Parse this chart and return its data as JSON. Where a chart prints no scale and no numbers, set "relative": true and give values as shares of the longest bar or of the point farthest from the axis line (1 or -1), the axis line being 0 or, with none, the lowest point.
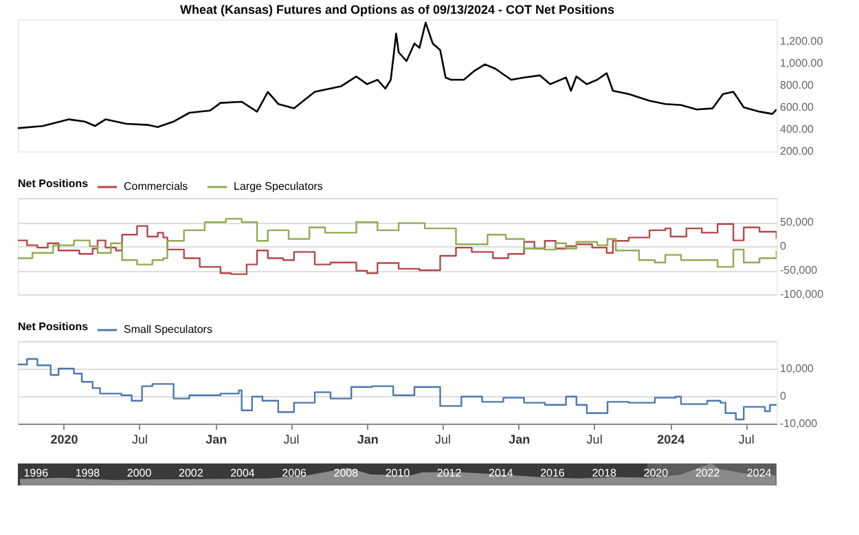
{
  "chart_data": [
    {
      "type": "line",
      "title": "Wheat (Kansas) Futures and Options as of 09/13/2024 - COT Net Positions",
      "color": "#000000",
      "grid": false,
      "tick_labels": "y",
      "x": [
        "2019-09-13",
        "2019-11-12",
        "2020-01-14",
        "2020-02-21",
        "2020-03-17",
        "2020-04-11",
        "2020-05-31",
        "2020-07-21",
        "2020-08-15",
        "2020-09-22",
        "2020-10-30",
        "2020-12-19",
        "2021-01-13",
        "2021-03-05",
        "2021-04-11",
        "2021-05-07",
        "2021-06-01",
        "2021-07-09",
        "2021-08-28",
        "2021-10-30",
        "2021-12-06",
        "2022-01-01",
        "2022-01-26",
        "2022-02-14",
        "2022-02-27",
        "2022-03-12",
        "2022-03-18",
        "2022-04-06",
        "2022-04-25",
        "2022-05-07",
        "2022-05-22",
        "2022-06-08",
        "2022-06-26",
        "2022-07-09",
        "2022-07-22",
        "2022-08-22",
        "2022-09-16",
        "2022-10-12",
        "2022-11-06",
        "2022-12-14",
        "2023-01-14",
        "2023-02-21",
        "2023-03-18",
        "2023-04-25",
        "2023-05-07",
        "2023-05-20",
        "2023-06-14",
        "2023-07-09",
        "2023-08-01",
        "2023-08-16",
        "2023-09-23",
        "2023-11-12",
        "2023-12-20",
        "2024-01-27",
        "2024-03-05",
        "2024-04-12",
        "2024-05-07",
        "2024-06-01",
        "2024-06-26",
        "2024-08-03",
        "2024-09-03",
        "2024-09-13"
      ],
      "values": [
        410,
        430,
        490,
        470,
        430,
        490,
        450,
        440,
        420,
        470,
        550,
        570,
        640,
        650,
        560,
        740,
        630,
        590,
        740,
        790,
        880,
        810,
        850,
        770,
        850,
        1270,
        1100,
        1020,
        1180,
        1140,
        1370,
        1180,
        1120,
        870,
        850,
        850,
        930,
        990,
        950,
        850,
        870,
        890,
        810,
        870,
        750,
        880,
        810,
        850,
        910,
        750,
        720,
        660,
        630,
        620,
        580,
        590,
        720,
        740,
        600,
        560,
        540,
        580
      ],
      "xlim": [
        "2019-09-13",
        "2024-09-13"
      ],
      "ylim": [
        200,
        1400
      ],
      "yticks": [
        {
          "value": 200,
          "label": "200.00"
        },
        {
          "value": 400,
          "label": "400.00"
        },
        {
          "value": 600,
          "label": "600.00"
        },
        {
          "value": 800,
          "label": "800.00"
        },
        {
          "value": 1000,
          "label": "1,000.00"
        },
        {
          "value": 1200,
          "label": "1,200.00"
        }
      ]
    },
    {
      "type": "step",
      "legend_title": "Net Positions",
      "legend": "top left",
      "grid": "y",
      "tick_labels": "y",
      "series": [
        {
          "name": "Commercials",
          "color": "#b5474a",
          "x": [
            "2019-09-13",
            "2019-10-05",
            "2019-10-30",
            "2019-11-24",
            "2019-12-20",
            "2020-02-08",
            "2020-03-11",
            "2020-03-23",
            "2020-04-11",
            "2020-05-06",
            "2020-05-21",
            "2020-06-26",
            "2020-07-21",
            "2020-08-15",
            "2020-08-28",
            "2020-09-07",
            "2020-10-17",
            "2020-11-24",
            "2021-01-13",
            "2021-02-07",
            "2021-03-17",
            "2021-04-11",
            "2021-05-07",
            "2021-06-13",
            "2021-07-09",
            "2021-08-28",
            "2021-10-05",
            "2021-12-06",
            "2022-01-01",
            "2022-01-26",
            "2022-03-18",
            "2022-05-07",
            "2022-06-26",
            "2022-08-03",
            "2022-09-10",
            "2022-10-31",
            "2022-12-07",
            "2023-01-14",
            "2023-02-08",
            "2023-03-05",
            "2023-03-31",
            "2023-04-25",
            "2023-05-20",
            "2023-06-27",
            "2023-08-01",
            "2023-08-16",
            "2023-09-23",
            "2023-11-12",
            "2023-12-20",
            "2024-01-02",
            "2024-02-09",
            "2024-03-17",
            "2024-04-24",
            "2024-06-01",
            "2024-06-26",
            "2024-08-03",
            "2024-09-13"
          ],
          "values": [
            12000,
            2000,
            -3000,
            6000,
            -9000,
            -16000,
            -5000,
            12000,
            -3000,
            -9000,
            24000,
            42000,
            20000,
            28000,
            18000,
            -7000,
            -25000,
            -43000,
            -56000,
            -58000,
            -38000,
            -9000,
            -25000,
            -29000,
            -12000,
            -38000,
            -34000,
            -51000,
            -56000,
            -35000,
            -47000,
            -50000,
            -20000,
            -3000,
            -12000,
            -25000,
            -16000,
            9000,
            -5000,
            11000,
            -5000,
            0,
            4000,
            -3000,
            -14000,
            11000,
            18000,
            33000,
            37000,
            20000,
            37000,
            28000,
            46000,
            12000,
            39000,
            30000,
            15000
          ]
        },
        {
          "name": "Large Speculators",
          "color": "#8fac52",
          "x": [
            "2019-09-13",
            "2019-10-18",
            "2019-12-07",
            "2020-01-26",
            "2020-03-04",
            "2020-03-23",
            "2020-04-24",
            "2020-05-21",
            "2020-06-26",
            "2020-08-02",
            "2020-08-28",
            "2020-09-07",
            "2020-10-17",
            "2020-12-06",
            "2021-01-26",
            "2021-03-05",
            "2021-04-11",
            "2021-05-07",
            "2021-06-26",
            "2021-08-15",
            "2021-09-22",
            "2021-12-06",
            "2022-01-26",
            "2022-03-18",
            "2022-05-20",
            "2022-08-03",
            "2022-10-18",
            "2022-12-01",
            "2023-01-14",
            "2023-03-05",
            "2023-03-31",
            "2023-04-25",
            "2023-05-20",
            "2023-07-09",
            "2023-08-03",
            "2023-08-23",
            "2023-10-18",
            "2023-11-25",
            "2023-12-20",
            "2024-01-27",
            "2024-03-17",
            "2024-04-24",
            "2024-06-01",
            "2024-06-26",
            "2024-08-03",
            "2024-09-13"
          ],
          "values": [
            -25000,
            -14000,
            2000,
            12000,
            0,
            -14000,
            6000,
            -29000,
            -38000,
            -29000,
            -25000,
            11000,
            33000,
            50000,
            57000,
            50000,
            11000,
            33000,
            15000,
            39000,
            28000,
            50000,
            33000,
            48000,
            37000,
            4000,
            24000,
            15000,
            -5000,
            -7000,
            6000,
            -5000,
            9000,
            2000,
            15000,
            -9000,
            -29000,
            -34000,
            -18000,
            -29000,
            -29000,
            -43000,
            -7000,
            -34000,
            -25000,
            -9000
          ]
        }
      ],
      "xlim": [
        "2019-09-13",
        "2024-09-13"
      ],
      "ylim": [
        -100000,
        100000
      ],
      "yticks": [
        {
          "value": -100000,
          "label": "-100,000"
        },
        {
          "value": -50000,
          "label": "-50,000"
        },
        0,
        {
          "value": 50000,
          "label": "50,000"
        },
        {
          "value": 100000,
          "label": null
        }
      ]
    },
    {
      "type": "step",
      "legend_title": "Net Positions",
      "legend": "top left",
      "grid": "y",
      "series": [
        {
          "name": "Small Speculators",
          "color": "#4a78b0",
          "x": [
            "2019-09-13",
            "2019-10-05",
            "2019-10-30",
            "2019-12-01",
            "2019-12-20",
            "2020-01-26",
            "2020-02-14",
            "2020-03-11",
            "2020-03-29",
            "2020-05-19",
            "2020-06-13",
            "2020-07-08",
            "2020-08-02",
            "2020-09-22",
            "2020-10-30",
            "2021-01-13",
            "2021-02-26",
            "2021-03-05",
            "2021-03-30",
            "2021-04-24",
            "2021-06-01",
            "2021-07-09",
            "2021-08-28",
            "2021-10-05",
            "2021-11-24",
            "2022-01-13",
            "2022-03-05",
            "2022-04-25",
            "2022-06-26",
            "2022-08-16",
            "2022-10-05",
            "2022-11-25",
            "2023-01-14",
            "2023-03-05",
            "2023-04-25",
            "2023-05-20",
            "2023-06-14",
            "2023-08-03",
            "2023-09-23",
            "2023-11-25",
            "2024-01-14",
            "2024-01-27",
            "2024-03-30",
            "2024-05-01",
            "2024-05-13",
            "2024-06-07",
            "2024-06-26",
            "2024-07-21",
            "2024-08-16",
            "2024-08-28",
            "2024-09-13"
          ],
          "values": [
            11500,
            13500,
            11200,
            7700,
            10000,
            8200,
            5200,
            2900,
            900,
            300,
            -1700,
            3600,
            4400,
            -900,
            300,
            900,
            2100,
            -5200,
            -200,
            -1700,
            -5800,
            -2400,
            1400,
            -900,
            3300,
            3600,
            300,
            3300,
            -3600,
            -200,
            -2100,
            -600,
            -2400,
            -3200,
            -200,
            -3200,
            -6200,
            -2100,
            -2400,
            -600,
            -200,
            -2900,
            -1700,
            -2400,
            -6200,
            -8500,
            -3900,
            -3900,
            -5500,
            -3200,
            -3200
          ]
        }
      ],
      "xlim": [
        "2019-09-13",
        "2024-09-13"
      ],
      "ylim": [
        -10000,
        20000
      ],
      "yticks": [
        {
          "value": -10000,
          "label": "-10,000"
        },
        0,
        {
          "value": 10000,
          "label": "10,000"
        },
        {
          "value": 20000,
          "label": null
        }
      ],
      "xticks": [
        {
          "value": "2020-01-01",
          "label": "2020"
        },
        {
          "value": "2020-07-01",
          "label": "Jul"
        },
        {
          "value": "2021-01-01",
          "label": "Jan"
        },
        {
          "value": "2021-07-01",
          "label": "Jul"
        },
        {
          "value": "2022-01-01",
          "label": "Jan"
        },
        {
          "value": "2022-07-01",
          "label": "Jul"
        },
        {
          "value": "2023-01-01",
          "label": "Jan"
        },
        {
          "value": "2023-07-01",
          "label": "Jul"
        },
        {
          "value": "2024-01-01",
          "label": "2024"
        },
        {
          "value": "2024-07-01",
          "label": "Jul"
        }
      ]
    },
    {
      "type": "area",
      "relative": true,
      "color": "#8a8a8a",
      "x": [
        "1995-06",
        "1997-01",
        "1999-01",
        "2001-01",
        "2003-01",
        "2005-01",
        "2006-07",
        "2008-02",
        "2009-01",
        "2010-07",
        "2011-01",
        "2012-07",
        "2014-01",
        "2015-07",
        "2017-01",
        "2018-07",
        "2020-01",
        "2021-01",
        "2022-03",
        "2022-07",
        "2023-07",
        "2024-09"
      ],
      "values": [
        0.3,
        0.35,
        0.25,
        0.28,
        0.3,
        0.32,
        0.45,
        0.8,
        0.5,
        0.45,
        0.6,
        0.6,
        0.5,
        0.38,
        0.32,
        0.38,
        0.35,
        0.5,
        1,
        0.75,
        0.55,
        0.45
      ],
      "xlim": [
        "1995-05",
        "2024-09-13"
      ],
      "xticks": [
        {
          "value": "1996",
          "label": "1996"
        },
        {
          "value": "1998",
          "label": "1998"
        },
        {
          "value": "2000",
          "label": "2000"
        },
        {
          "value": "2002",
          "label": "2002"
        },
        {
          "value": "2004",
          "label": "2004"
        },
        {
          "value": "2006",
          "label": "2006"
        },
        {
          "value": "2008",
          "label": "2008"
        },
        {
          "value": "2010",
          "label": "2010"
        },
        {
          "value": "2012",
          "label": "2012"
        },
        {
          "value": "2014",
          "label": "2014"
        },
        {
          "value": "2016",
          "label": "2016"
        },
        {
          "value": "2018",
          "label": "2018"
        },
        {
          "value": "2020",
          "label": "2020"
        },
        {
          "value": "2022",
          "label": "2022"
        },
        {
          "value": "2024",
          "label": "2024"
        }
      ],
      "bands": [
        {
          "axis": "x",
          "from": "2019-09-13",
          "to": "2024-09-13",
          "color": "#5c5c5c"
        }
      ]
    }
  ]
}
